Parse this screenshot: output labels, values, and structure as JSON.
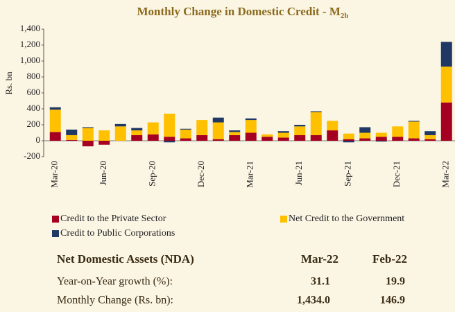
{
  "chart_data": {
    "type": "stacked_bar",
    "title": "Monthly Change in Domestic Credit - M",
    "title_subscript": "2b",
    "ylabel": "Rs. bn",
    "categories": [
      "Mar-20",
      null,
      null,
      "Jun-20",
      null,
      null,
      "Sep-20",
      null,
      null,
      "Dec-20",
      null,
      null,
      "Mar-21",
      null,
      null,
      "Jun-21",
      null,
      null,
      "Sep-21",
      null,
      null,
      "Dec-21",
      null,
      null,
      "Mar-22"
    ],
    "series": [
      {
        "name": "Credit to the Private Sector",
        "color": "#a50021",
        "values": [
          110,
          10,
          -70,
          -50,
          0,
          70,
          80,
          50,
          30,
          70,
          20,
          70,
          100,
          50,
          40,
          70,
          70,
          130,
          20,
          30,
          50,
          50,
          30,
          20,
          480
        ]
      },
      {
        "name": "Net Credit to the Government",
        "color": "#ffc000",
        "values": [
          280,
          60,
          160,
          130,
          180,
          60,
          150,
          290,
          110,
          190,
          210,
          40,
          160,
          30,
          60,
          110,
          290,
          120,
          70,
          70,
          50,
          130,
          210,
          50,
          450
        ]
      },
      {
        "name": "Credit to Public Corporations",
        "color": "#1f3864",
        "values": [
          30,
          70,
          10,
          0,
          30,
          30,
          0,
          -20,
          10,
          0,
          60,
          20,
          20,
          0,
          20,
          20,
          10,
          0,
          -20,
          70,
          -10,
          0,
          10,
          50,
          310
        ]
      }
    ],
    "ylim": [
      -200,
      1400
    ],
    "yticks": [
      -200,
      0,
      200,
      400,
      600,
      800,
      {
        "value": 1000,
        "label": "1,000"
      },
      {
        "value": 1200,
        "label": "1,200"
      },
      {
        "value": 1400,
        "label": "1,400"
      }
    ],
    "legend": "bottom"
  },
  "table": {
    "header": [
      "Net Domestic Assets (NDA)",
      "Mar-22",
      "Feb-22"
    ],
    "rows": [
      [
        "Year-on-Year growth (%):",
        "31.1",
        "19.9"
      ],
      [
        "Monthly Change (Rs. bn):",
        "1,434.0",
        "146.9"
      ]
    ]
  }
}
